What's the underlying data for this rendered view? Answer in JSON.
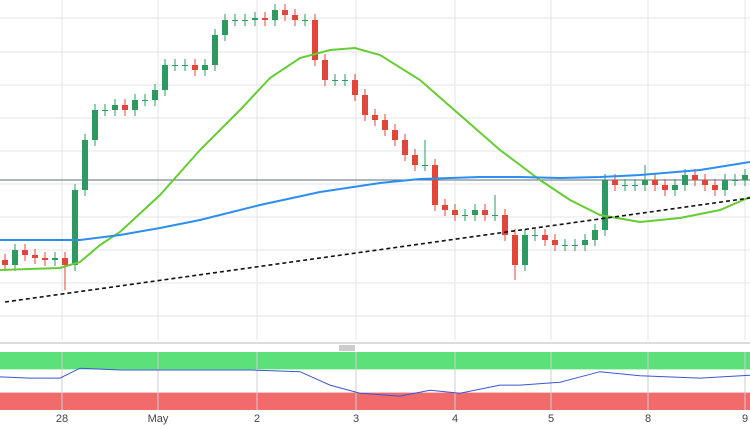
{
  "chart_data": [
    {
      "type": "candlestick",
      "xlim": [
        0,
        75
      ],
      "ylim": [
        0,
        340
      ],
      "grid_lines": [
        322,
        288,
        255,
        222,
        189,
        156,
        123,
        90,
        57,
        24
      ],
      "up_color": "#2e9960",
      "down_color": "#e0463c",
      "open": [
        80,
        75,
        90,
        85,
        82,
        80,
        82,
        75,
        150,
        200,
        230,
        230,
        235,
        230,
        240,
        240,
        250,
        275,
        275,
        275,
        270,
        275,
        305,
        320,
        320,
        320,
        322,
        320,
        330,
        325,
        320,
        320,
        280,
        260,
        260,
        260,
        245,
        225,
        220,
        210,
        200,
        185,
        175,
        175,
        135,
        130,
        125,
        125,
        130,
        125,
        125,
        105,
        75,
        105,
        105,
        100,
        95,
        95,
        95,
        100,
        110,
        160,
        155,
        155,
        155,
        160,
        155,
        150,
        155,
        165,
        160,
        155,
        150,
        160,
        160
      ],
      "high": [
        86,
        96,
        96,
        91,
        88,
        88,
        88,
        156,
        206,
        236,
        236,
        241,
        241,
        246,
        246,
        256,
        281,
        281,
        281,
        281,
        281,
        311,
        326,
        326,
        326,
        328,
        328,
        336,
        336,
        331,
        326,
        326,
        286,
        266,
        266,
        266,
        251,
        231,
        226,
        216,
        206,
        191,
        200,
        181,
        141,
        136,
        131,
        136,
        136,
        145,
        131,
        111,
        111,
        111,
        111,
        106,
        101,
        101,
        106,
        116,
        166,
        166,
        161,
        161,
        175,
        166,
        161,
        161,
        171,
        171,
        166,
        161,
        166,
        166,
        171
      ],
      "low": [
        69,
        69,
        79,
        76,
        74,
        74,
        50,
        69,
        144,
        194,
        224,
        224,
        224,
        224,
        234,
        234,
        244,
        269,
        269,
        264,
        264,
        269,
        299,
        314,
        314,
        314,
        314,
        314,
        319,
        314,
        314,
        274,
        254,
        254,
        254,
        239,
        219,
        214,
        204,
        194,
        179,
        169,
        169,
        129,
        124,
        119,
        119,
        119,
        119,
        119,
        99,
        60,
        69,
        99,
        94,
        89,
        89,
        89,
        89,
        94,
        104,
        149,
        149,
        149,
        149,
        149,
        144,
        144,
        149,
        154,
        149,
        144,
        144,
        154,
        154
      ],
      "close": [
        75,
        90,
        85,
        82,
        80,
        82,
        75,
        150,
        200,
        230,
        230,
        235,
        230,
        240,
        240,
        250,
        275,
        275,
        275,
        270,
        275,
        305,
        320,
        320,
        320,
        322,
        320,
        330,
        325,
        320,
        320,
        280,
        260,
        260,
        260,
        245,
        225,
        220,
        210,
        200,
        185,
        175,
        175,
        135,
        130,
        125,
        125,
        130,
        125,
        125,
        105,
        75,
        105,
        105,
        100,
        95,
        95,
        95,
        100,
        110,
        160,
        155,
        155,
        155,
        160,
        155,
        150,
        155,
        165,
        160,
        155,
        150,
        160,
        160,
        165
      ],
      "overlays": [
        {
          "color": "#66cc33",
          "x": [
            0,
            6,
            8,
            10,
            12,
            16,
            20,
            24,
            27,
            30,
            33,
            35.5,
            38,
            42,
            46,
            50,
            52,
            54,
            57,
            60,
            64,
            68,
            72,
            75
          ],
          "values": [
            70,
            72,
            78,
            95,
            108,
            145,
            190,
            230,
            262,
            282,
            290,
            292,
            285,
            260,
            225,
            190,
            175,
            160,
            140,
            125,
            118,
            122,
            130,
            143
          ]
        },
        {
          "color": "#2b8ef0",
          "x": [
            0,
            8,
            12,
            16,
            20,
            26,
            32,
            38,
            42,
            48,
            52,
            56,
            60,
            64,
            70,
            75
          ],
          "values": [
            100,
            100,
            105,
            112,
            120,
            135,
            148,
            157,
            161,
            163,
            163,
            162,
            163,
            165,
            170,
            178
          ]
        }
      ],
      "level": 160,
      "trendline": {
        "x": [
          0.5,
          75
        ],
        "values": [
          38,
          142
        ]
      }
    },
    {
      "type": "rsi",
      "xlim": [
        0,
        75
      ],
      "ylim": [
        0,
        100
      ],
      "overbought": 70,
      "oversold": 30,
      "color": "#3b55d9",
      "x": [
        0,
        3,
        6,
        8,
        12,
        16,
        20,
        25,
        30,
        33,
        36,
        40,
        43,
        46,
        50,
        52,
        56,
        60,
        64,
        70,
        75
      ],
      "values": [
        57,
        55,
        55,
        72,
        69,
        69,
        69,
        69,
        66,
        43,
        29,
        24,
        34,
        29,
        43,
        43,
        48,
        66,
        59,
        55,
        60
      ],
      "xticks": [
        {
          "value": 6.2,
          "label": "28"
        },
        {
          "value": 15.8,
          "label": "May"
        },
        {
          "value": 25.7,
          "label": "2"
        },
        {
          "value": 35.6,
          "label": "3"
        },
        {
          "value": 45.5,
          "label": "4"
        },
        {
          "value": 55.1,
          "label": "5"
        },
        {
          "value": 64.8,
          "label": "8"
        },
        {
          "value": 74.5,
          "label": "9"
        }
      ]
    }
  ]
}
